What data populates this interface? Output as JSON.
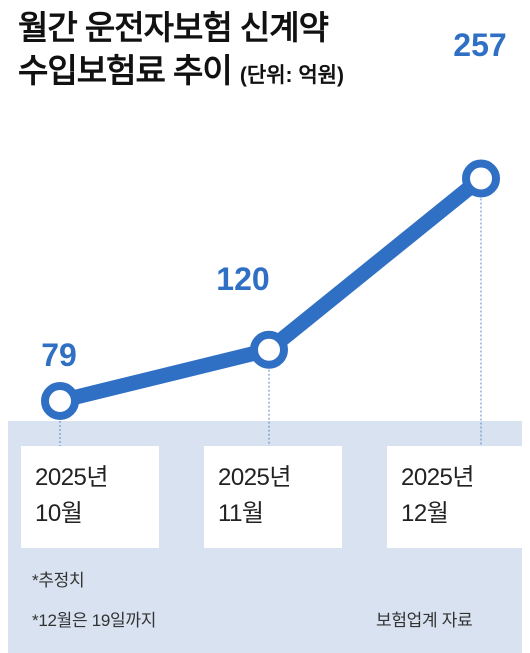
{
  "title": {
    "line1": "월간 운전자보험 신계약",
    "line2": "수입보험료 추이",
    "unit": "(단위: 억원)"
  },
  "chart_data": {
    "type": "line",
    "categories": [
      {
        "line1": "2025년",
        "line2": "10월"
      },
      {
        "line1": "2025년",
        "line2": "11월"
      },
      {
        "line1": "2025년",
        "line2": "12월"
      }
    ],
    "values": [
      79,
      120,
      257
    ],
    "data_labels": [
      "79",
      "120",
      "257"
    ],
    "ylim": [
      0,
      280
    ],
    "grid": false,
    "line_color": "#2f6fc4"
  },
  "notes": {
    "estimate": "*추정치",
    "december": "*12월은 19일까지",
    "source": "보험업계 자료"
  }
}
